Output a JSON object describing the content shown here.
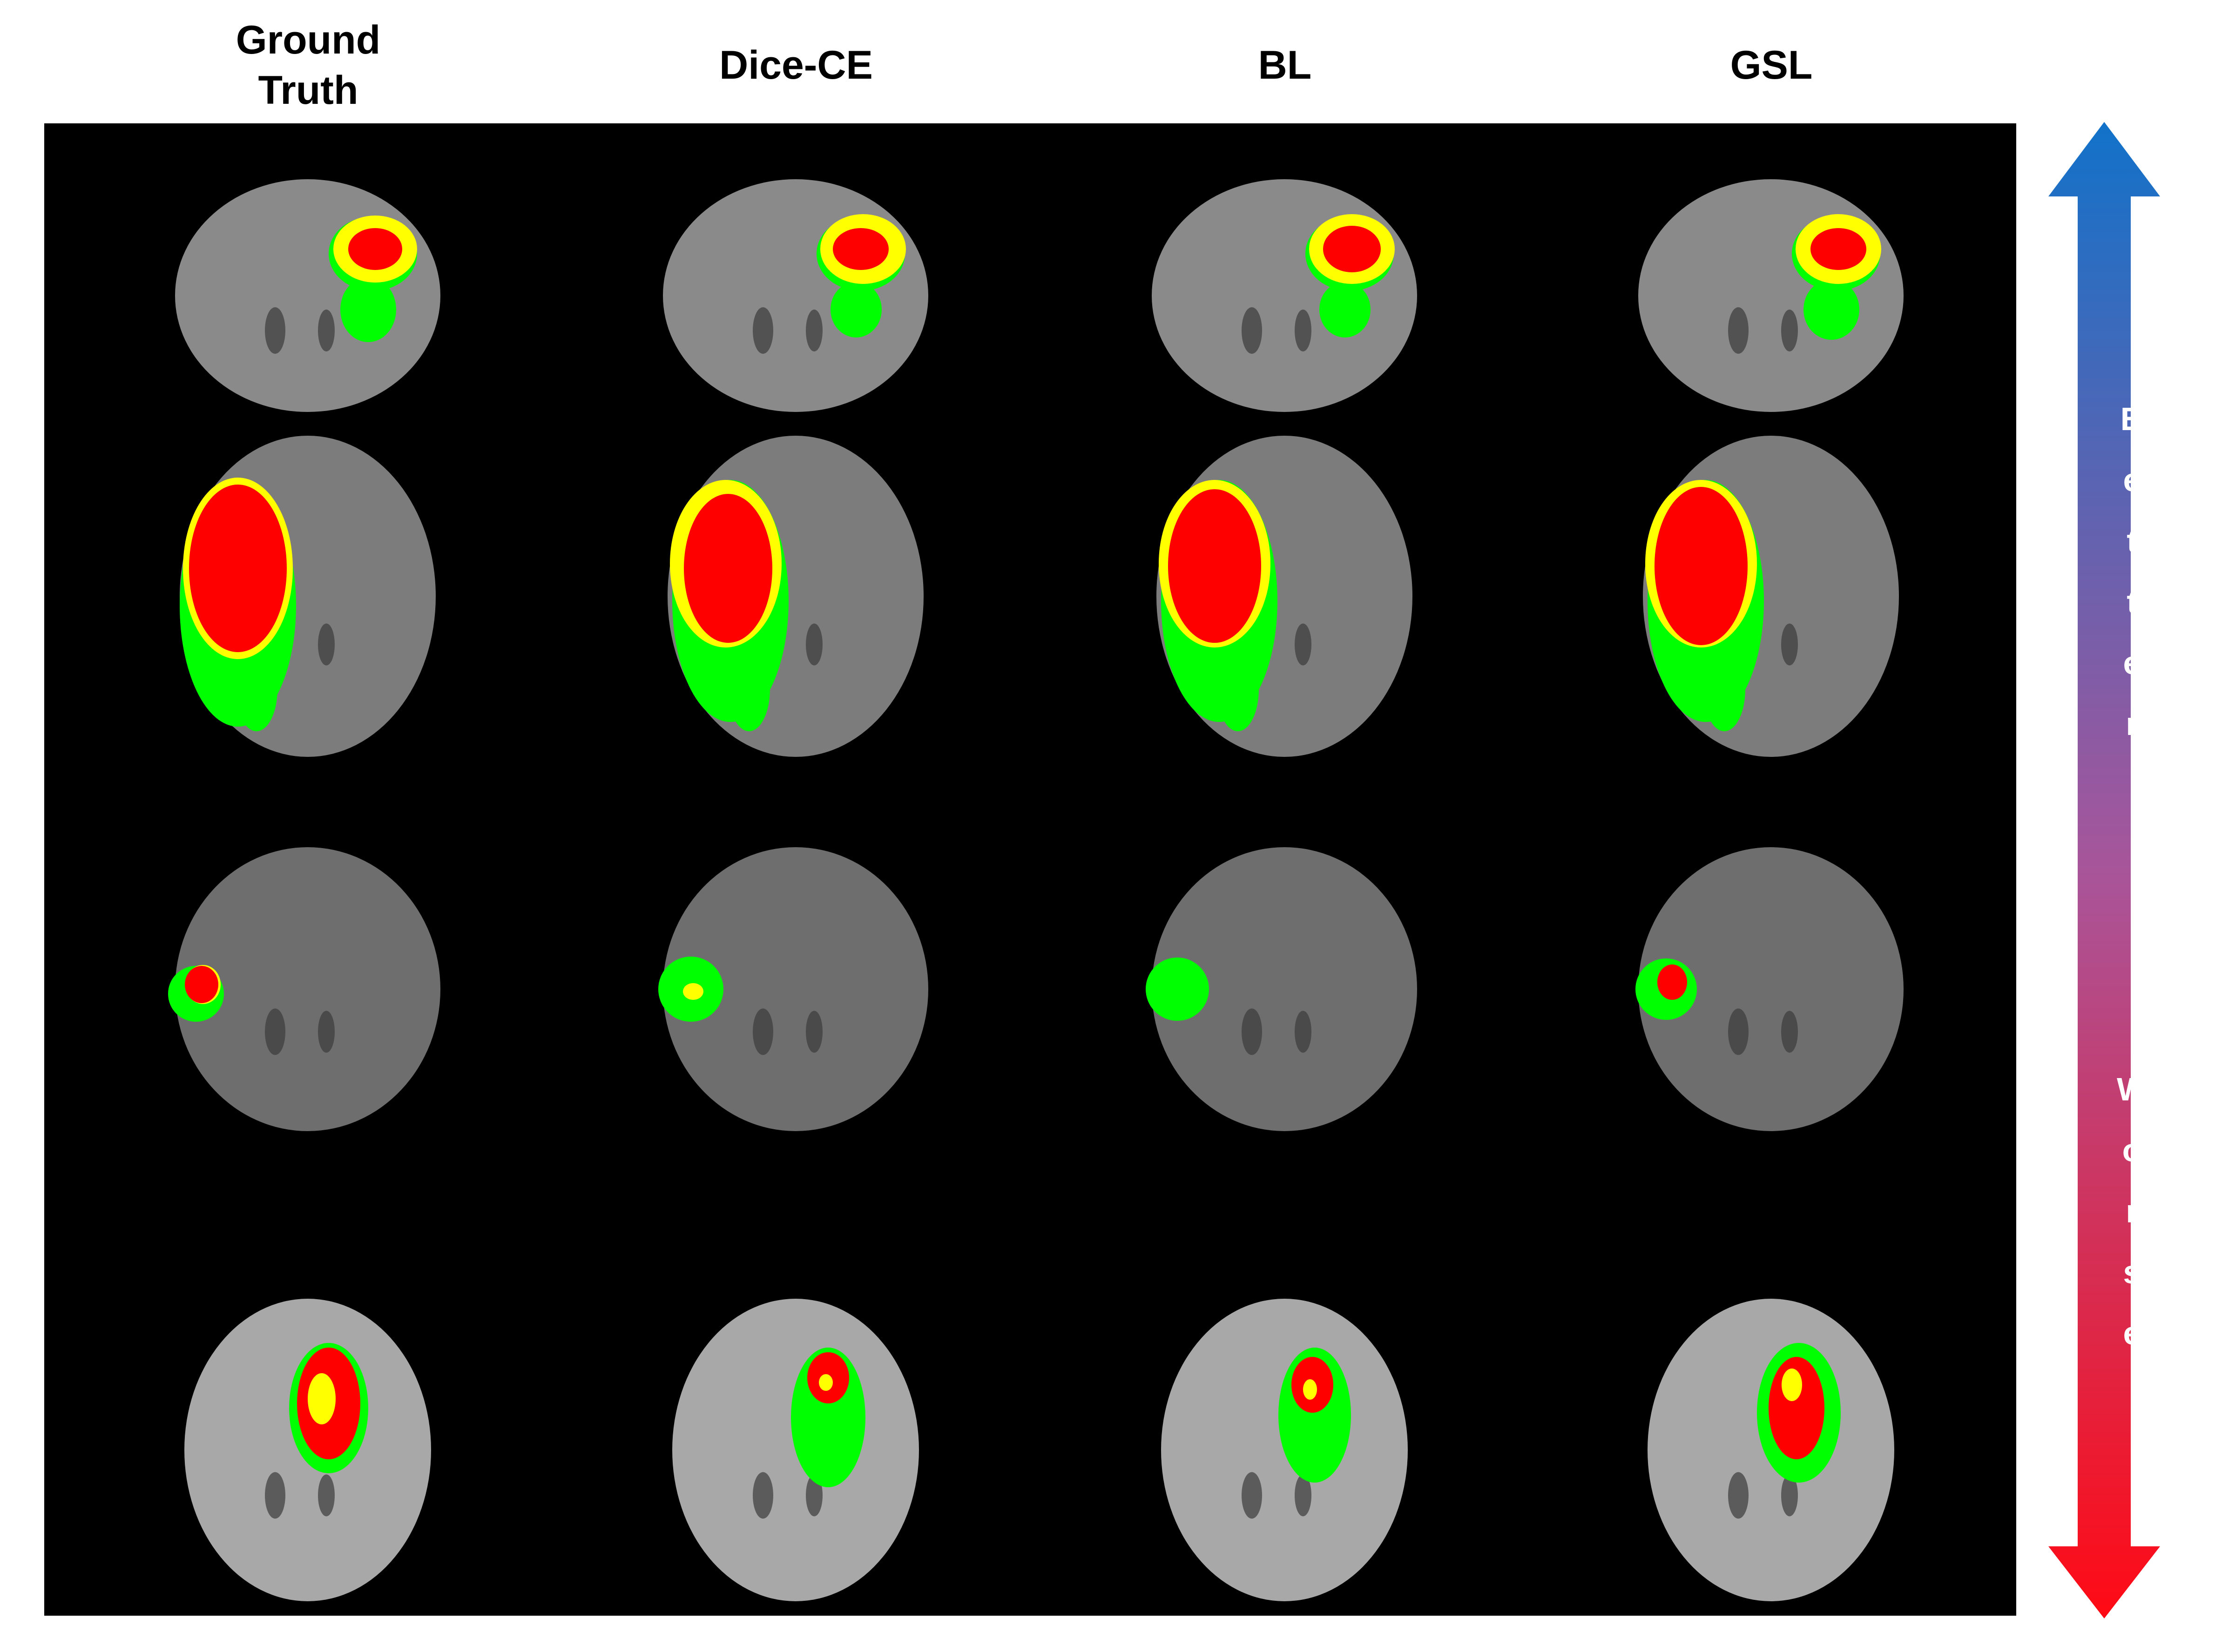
{
  "columns": [
    "Ground\nTruth",
    "Dice-CE",
    "BL",
    "GSL"
  ],
  "arrow": {
    "top_label": [
      "B",
      "e",
      "t",
      "t",
      "e",
      "r"
    ],
    "bottom_label": [
      "W",
      "o",
      "r",
      "s",
      "e"
    ],
    "top_color": "#1172c9",
    "bottom_color": "#ff0a14"
  },
  "legend_colors": {
    "edema": "#00ff00",
    "enhancing": "#ffff00",
    "core": "#ff0000",
    "background": "#000000"
  }
}
